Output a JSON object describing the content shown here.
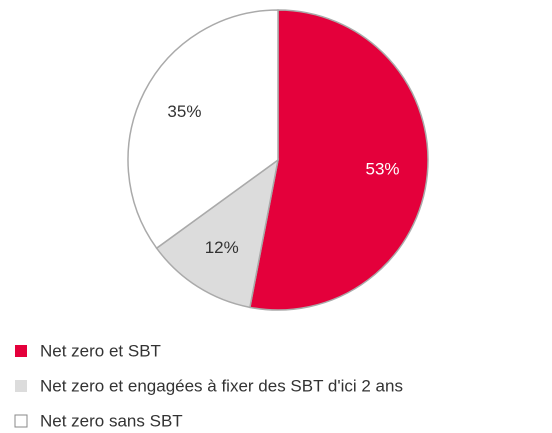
{
  "chart_data": {
    "type": "pie",
    "categories": [
      "Net zero et SBT",
      "Net zero et engagées à fixer des SBT d'ici 2 ans",
      "Net zero sans SBT"
    ],
    "values": [
      53,
      12,
      35
    ],
    "value_labels": [
      "53%",
      "12%",
      "35%"
    ],
    "colors": [
      "#e4003b",
      "#dcdcdc",
      "#ffffff"
    ],
    "label_colors": [
      "#ffffff",
      "#333333",
      "#333333"
    ],
    "legend": "bottom-left"
  }
}
